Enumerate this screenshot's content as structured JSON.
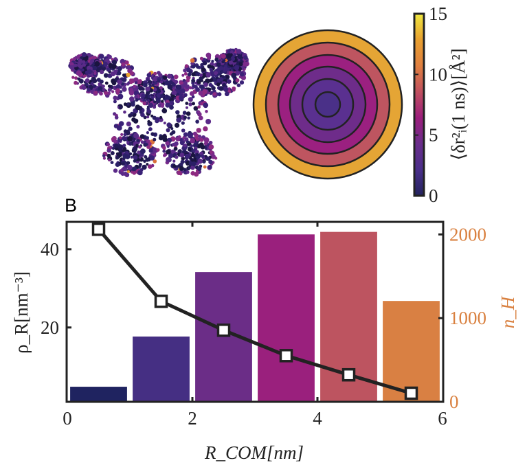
{
  "panel_label": "B",
  "colorbar": {
    "label": "⟨δr²ᵢ(1 ns)⟩[Å²]",
    "ticks": [
      "0",
      "5",
      "10",
      "15"
    ],
    "range": [
      0,
      15
    ],
    "colors": [
      "#23235e",
      "#4a2f8a",
      "#6a2d8b",
      "#9c1e7c",
      "#c0505f",
      "#e08040",
      "#e8a030",
      "#f0e840"
    ]
  },
  "rings": {
    "colors": [
      "#e5a535",
      "#be5560",
      "#9b2080",
      "#6e2c8a",
      "#5a3090",
      "#4a3088"
    ]
  },
  "chart_data": {
    "type": "bar+line",
    "xlabel": "R_COM[nm]",
    "ylabel_left": "ρ_R[nm⁻³]",
    "ylabel_right": "n_H",
    "xlim": [
      0,
      6
    ],
    "ylim_left": [
      1,
      47
    ],
    "ylim_right": [
      0,
      2150
    ],
    "x_ticks": [
      "0",
      "2",
      "4",
      "6"
    ],
    "y_left_ticks": [
      "20",
      "40"
    ],
    "y_right_ticks": [
      "0",
      "1000",
      "2000"
    ],
    "right_axis_color": "#d9803f",
    "bars": {
      "axis": "right",
      "x": [
        0.5,
        1.5,
        2.5,
        3.5,
        4.5,
        5.5
      ],
      "values": [
        180,
        780,
        1550,
        2000,
        2030,
        1205
      ],
      "colors": [
        "#1f2360",
        "#452f83",
        "#6b2d87",
        "#9a207d",
        "#bd5460",
        "#d98043"
      ]
    },
    "line": {
      "axis": "left",
      "x": [
        0.5,
        1.5,
        2.5,
        3.5,
        4.5,
        5.5
      ],
      "values": [
        45.1,
        26.7,
        19.3,
        12.8,
        7.9,
        3.2
      ],
      "marker": "square",
      "color": "#222222"
    },
    "grid": false
  }
}
